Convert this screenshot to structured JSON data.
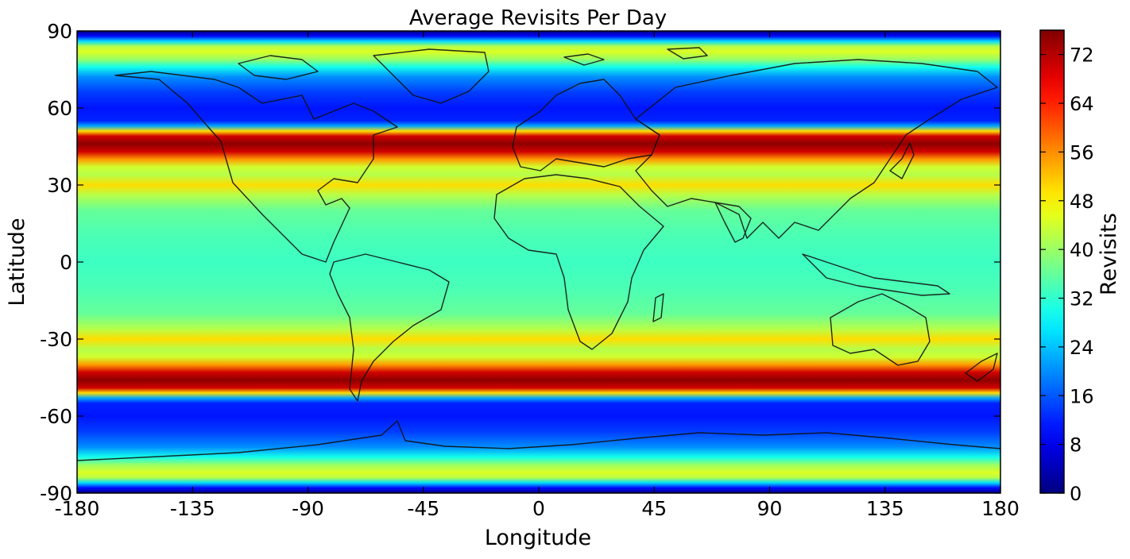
{
  "chart_data": {
    "type": "heatmap",
    "title": "Average Revisits Per Day",
    "xlabel": "Longitude",
    "ylabel": "Latitude",
    "xlim": [
      -180,
      180
    ],
    "ylim": [
      -90,
      90
    ],
    "x_ticks": [
      -180,
      -135,
      -90,
      -45,
      0,
      45,
      90,
      135,
      180
    ],
    "y_ticks": [
      90,
      60,
      30,
      0,
      -30,
      -60,
      -90
    ],
    "colorbar": {
      "label": "Revisits",
      "colormap": "jet",
      "range": [
        0,
        76
      ],
      "ticks": [
        0,
        8,
        16,
        24,
        32,
        40,
        48,
        56,
        64,
        72
      ]
    },
    "latitude_profile": [
      {
        "lat": 90,
        "value": 0
      },
      {
        "lat": 88,
        "value": 10
      },
      {
        "lat": 86,
        "value": 26
      },
      {
        "lat": 84,
        "value": 42
      },
      {
        "lat": 82,
        "value": 45
      },
      {
        "lat": 79,
        "value": 40
      },
      {
        "lat": 76,
        "value": 30
      },
      {
        "lat": 72,
        "value": 20
      },
      {
        "lat": 66,
        "value": 14
      },
      {
        "lat": 60,
        "value": 11
      },
      {
        "lat": 55,
        "value": 12
      },
      {
        "lat": 53,
        "value": 22
      },
      {
        "lat": 51,
        "value": 50
      },
      {
        "lat": 49,
        "value": 70
      },
      {
        "lat": 46,
        "value": 75
      },
      {
        "lat": 43,
        "value": 70
      },
      {
        "lat": 40,
        "value": 55
      },
      {
        "lat": 37,
        "value": 44
      },
      {
        "lat": 34,
        "value": 42
      },
      {
        "lat": 30,
        "value": 50
      },
      {
        "lat": 26,
        "value": 42
      },
      {
        "lat": 20,
        "value": 36
      },
      {
        "lat": 10,
        "value": 34
      },
      {
        "lat": 0,
        "value": 33
      },
      {
        "lat": -10,
        "value": 34
      },
      {
        "lat": -20,
        "value": 36
      },
      {
        "lat": -26,
        "value": 42
      },
      {
        "lat": -30,
        "value": 50
      },
      {
        "lat": -34,
        "value": 42
      },
      {
        "lat": -37,
        "value": 44
      },
      {
        "lat": -40,
        "value": 55
      },
      {
        "lat": -43,
        "value": 70
      },
      {
        "lat": -46,
        "value": 75
      },
      {
        "lat": -49,
        "value": 70
      },
      {
        "lat": -51,
        "value": 50
      },
      {
        "lat": -53,
        "value": 22
      },
      {
        "lat": -55,
        "value": 12
      },
      {
        "lat": -60,
        "value": 11
      },
      {
        "lat": -66,
        "value": 14
      },
      {
        "lat": -72,
        "value": 20
      },
      {
        "lat": -76,
        "value": 30
      },
      {
        "lat": -79,
        "value": 40
      },
      {
        "lat": -82,
        "value": 45
      },
      {
        "lat": -84,
        "value": 42
      },
      {
        "lat": -86,
        "value": 26
      },
      {
        "lat": -88,
        "value": 10
      },
      {
        "lat": -90,
        "value": 0
      }
    ]
  }
}
